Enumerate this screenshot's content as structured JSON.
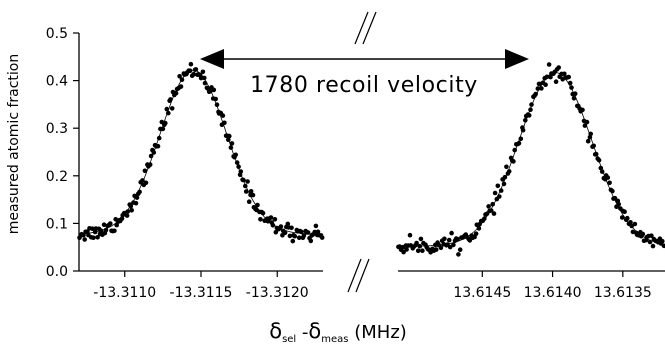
{
  "chart_data": {
    "type": "scatter",
    "ylabel": "measured atomic fraction",
    "ylim": [
      0.0,
      0.5
    ],
    "y_ticks": [
      "0.0",
      "0.1",
      "0.2",
      "0.3",
      "0.4",
      "0.5"
    ],
    "xlabel": {
      "delta1": "δ",
      "sub1": "sel",
      "dash": " -",
      "delta2": "δ",
      "sub2": "meas",
      "unit": " (MHz)"
    },
    "annotation": "1780 recoil velocity",
    "panels": [
      {
        "xlim": [
          -13.3107,
          -13.3123
        ],
        "x_ticks": [
          -13.311,
          -13.3115,
          -13.312
        ],
        "x_tick_labels": [
          "-13.3110",
          "-13.3115",
          "-13.3120"
        ],
        "peak_center": -13.31145,
        "peak_amplitude": 0.345,
        "baseline": 0.077,
        "sigma": 0.00022
      },
      {
        "xlim": [
          13.6151,
          13.6132
        ],
        "x_ticks": [
          13.6145,
          13.614,
          13.6135
        ],
        "x_tick_labels": [
          "13.6145",
          "13.6140",
          "13.6135"
        ],
        "peak_center": 13.61398,
        "peak_amplitude": 0.365,
        "baseline": 0.052,
        "sigma": 0.00026
      }
    ],
    "grid": false,
    "legend": "none"
  }
}
